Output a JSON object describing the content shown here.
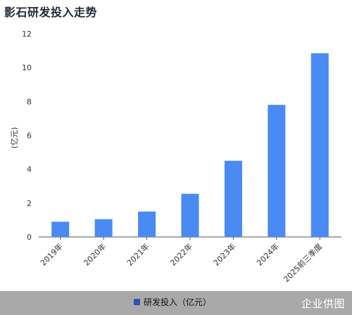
{
  "title": "影石研发投入走势",
  "colors": {
    "bar": "#4a8af4",
    "axis": "#333333",
    "grid_label": "#333333",
    "footer": "#a9a9a9"
  },
  "legend": {
    "label": "研发投入（亿元）",
    "color": "#2f55b8"
  },
  "watermark": "企业供图",
  "chart_data": {
    "type": "bar",
    "title": "影石研发投入走势",
    "ylabel": "(亿元)",
    "xlabel": "",
    "ylim": [
      0,
      12
    ],
    "yticks": [
      0,
      2,
      4,
      6,
      8,
      10,
      12
    ],
    "grid": false,
    "legend_position": "bottom",
    "categories": [
      "2019年",
      "2020年",
      "2021年",
      "2022年",
      "2023年",
      "2024年",
      "2025前三季度"
    ],
    "series": [
      {
        "name": "研发投入（亿元）",
        "values": [
          0.9,
          1.05,
          1.5,
          2.55,
          4.5,
          7.8,
          10.85
        ]
      }
    ]
  }
}
